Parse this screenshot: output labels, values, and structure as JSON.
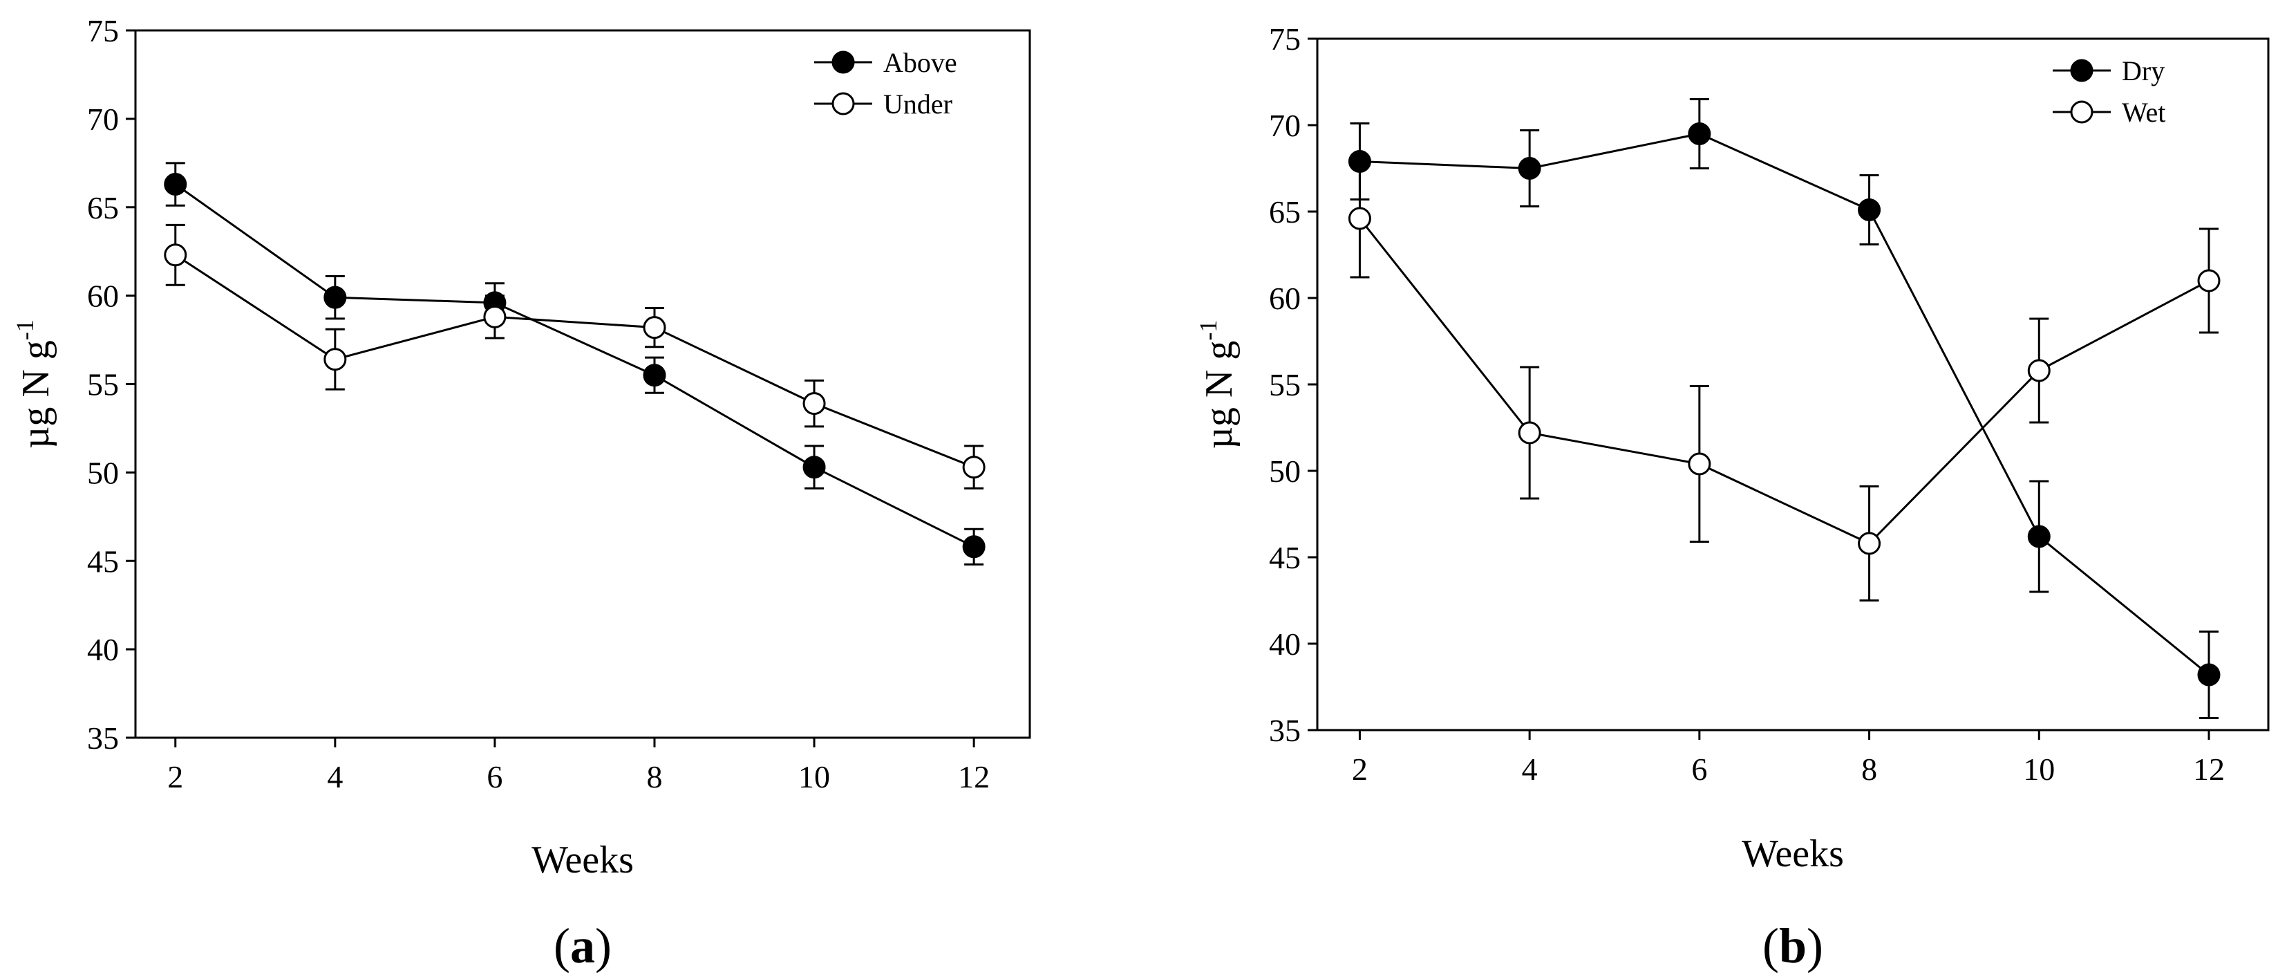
{
  "chart_data": [
    {
      "type": "line",
      "panel_label": "a",
      "title": "",
      "xlabel": "Weeks",
      "ylabel_main": "µg N g",
      "ylabel_sup": "-1",
      "x": [
        2,
        4,
        6,
        8,
        10,
        12
      ],
      "x_ticks": [
        "2",
        "4",
        "6",
        "8",
        "10",
        "12"
      ],
      "xlim": [
        1.5,
        12.7
      ],
      "ylim": [
        35,
        75
      ],
      "y_ticks": [
        "35",
        "40",
        "45",
        "50",
        "55",
        "60",
        "65",
        "70",
        "75"
      ],
      "legend_position": "top-right",
      "series": [
        {
          "name": "Above",
          "marker": "filled-circle",
          "values": [
            66.3,
            59.9,
            59.6,
            55.5,
            50.3,
            45.8
          ],
          "errors": [
            1.2,
            1.2,
            1.1,
            1.0,
            1.2,
            1.0
          ]
        },
        {
          "name": "Under",
          "marker": "open-circle",
          "values": [
            62.3,
            56.4,
            58.8,
            58.2,
            53.9,
            50.3
          ],
          "errors": [
            1.7,
            1.7,
            1.2,
            1.1,
            1.3,
            1.2
          ]
        }
      ]
    },
    {
      "type": "line",
      "panel_label": "b",
      "title": "",
      "xlabel": "Weeks",
      "ylabel_main": "µg N g",
      "ylabel_sup": "-1",
      "x": [
        2,
        4,
        6,
        8,
        10,
        12
      ],
      "x_ticks": [
        "2",
        "4",
        "6",
        "8",
        "10",
        "12"
      ],
      "xlim": [
        1.5,
        12.7
      ],
      "ylim": [
        35,
        75
      ],
      "y_ticks": [
        "35",
        "40",
        "45",
        "50",
        "55",
        "60",
        "65",
        "70",
        "75"
      ],
      "legend_position": "top-right",
      "series": [
        {
          "name": "Dry",
          "marker": "filled-circle",
          "values": [
            67.9,
            67.5,
            69.5,
            65.1,
            46.2,
            38.2
          ],
          "errors": [
            2.2,
            2.2,
            2.0,
            2.0,
            3.2,
            2.5
          ]
        },
        {
          "name": "Wet",
          "marker": "open-circle",
          "values": [
            64.6,
            52.2,
            50.4,
            45.8,
            55.8,
            61.0
          ],
          "errors": [
            3.4,
            3.8,
            4.5,
            3.3,
            3.0,
            3.0
          ]
        }
      ]
    }
  ]
}
